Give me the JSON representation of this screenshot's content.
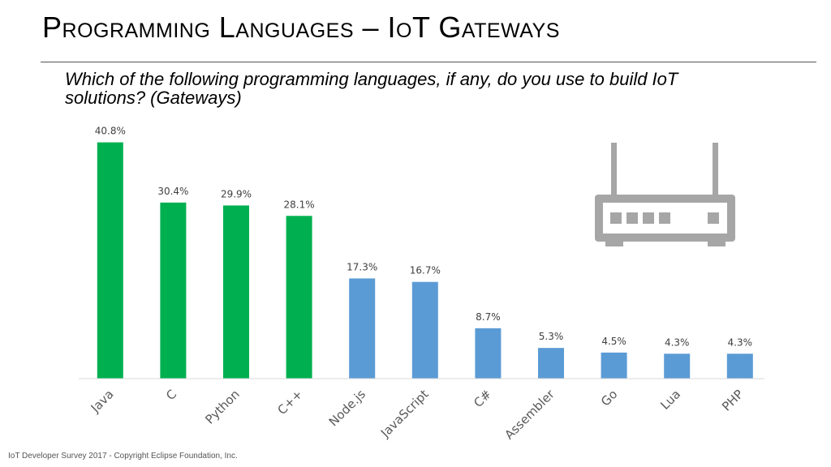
{
  "slide": {
    "title": "Programming Languages – IoT Gateways",
    "question": "Which of the following programming languages, if any, do you use to build IoT solutions? (Gateways)",
    "footer": "IoT Developer Survey 2017 - Copyright Eclipse Foundation, Inc.",
    "router_icon": "router-icon"
  },
  "chart_data": {
    "type": "bar",
    "categories": [
      "Java",
      "C",
      "Python",
      "C++",
      "Node.js",
      "JavaScript",
      "C#",
      "Assembler",
      "Go",
      "Lua",
      "PHP"
    ],
    "values": [
      40.8,
      30.4,
      29.9,
      28.1,
      17.3,
      16.7,
      8.7,
      5.3,
      4.5,
      4.3,
      4.3
    ],
    "data_labels": [
      "40.8%",
      "30.4%",
      "29.9%",
      "28.1%",
      "17.3%",
      "16.7%",
      "8.7%",
      "5.3%",
      "4.5%",
      "4.3%",
      "4.3%"
    ],
    "bar_colors": [
      "#00b050",
      "#00b050",
      "#00b050",
      "#00b050",
      "#5b9bd5",
      "#5b9bd5",
      "#5b9bd5",
      "#5b9bd5",
      "#5b9bd5",
      "#5b9bd5",
      "#5b9bd5"
    ],
    "icon_color": "#a6a6a6",
    "ylim": [
      0,
      42
    ],
    "xlabel": "",
    "ylabel": "",
    "grid": false,
    "legend": false
  }
}
